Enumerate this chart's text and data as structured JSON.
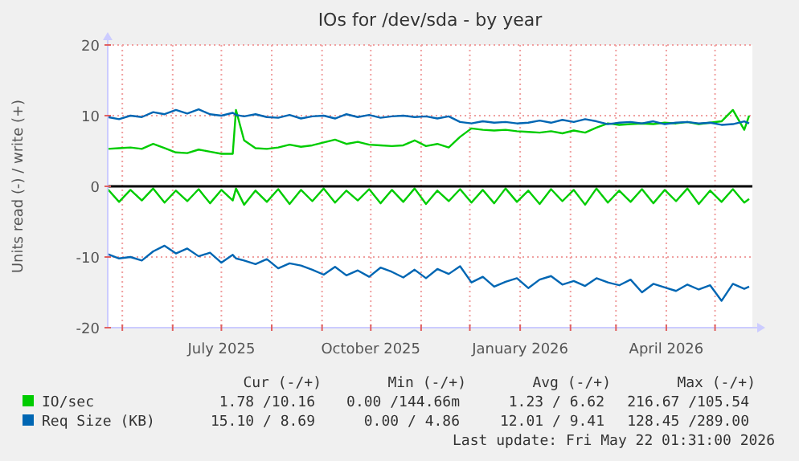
{
  "chart_data": {
    "type": "line",
    "title": "IOs for /dev/sda - by year",
    "ylabel": "Units read (-) / write (+)",
    "x": [
      "2025-04-22",
      "2025-04-29",
      "2025-05-06",
      "2025-05-13",
      "2025-05-20",
      "2025-05-27",
      "2025-06-03",
      "2025-06-10",
      "2025-06-17",
      "2025-06-24",
      "2025-07-01",
      "2025-07-08",
      "2025-07-10",
      "2025-07-15",
      "2025-07-22",
      "2025-07-29",
      "2025-08-05",
      "2025-08-12",
      "2025-08-19",
      "2025-08-26",
      "2025-09-02",
      "2025-09-09",
      "2025-09-16",
      "2025-09-23",
      "2025-09-30",
      "2025-10-07",
      "2025-10-14",
      "2025-10-21",
      "2025-10-28",
      "2025-11-04",
      "2025-11-11",
      "2025-11-18",
      "2025-11-25",
      "2025-12-02",
      "2025-12-09",
      "2025-12-16",
      "2025-12-23",
      "2025-12-30",
      "2026-01-06",
      "2026-01-13",
      "2026-01-20",
      "2026-01-27",
      "2026-02-03",
      "2026-02-10",
      "2026-02-17",
      "2026-02-24",
      "2026-03-03",
      "2026-03-10",
      "2026-03-17",
      "2026-03-24",
      "2026-03-31",
      "2026-04-07",
      "2026-04-14",
      "2026-04-21",
      "2026-04-28",
      "2026-05-05",
      "2026-05-12",
      "2026-05-19",
      "2026-05-22"
    ],
    "series": [
      {
        "name": "IO/sec",
        "color": "#00cc00",
        "values": [
          5.3,
          5.4,
          5.5,
          5.3,
          6.0,
          5.4,
          4.8,
          4.7,
          5.2,
          4.9,
          4.6,
          4.6,
          10.8,
          6.5,
          5.4,
          5.3,
          5.5,
          5.9,
          5.6,
          5.8,
          6.2,
          6.6,
          6.0,
          6.3,
          5.9,
          5.8,
          5.7,
          5.8,
          6.5,
          5.7,
          6.0,
          5.5,
          7.0,
          8.2,
          8.0,
          7.9,
          8.0,
          7.8,
          7.7,
          7.6,
          7.8,
          7.5,
          7.9,
          7.6,
          8.3,
          8.9,
          8.7,
          8.8,
          8.9,
          8.8,
          9.0,
          8.9,
          9.1,
          8.8,
          9.0,
          9.2,
          10.8,
          8.0,
          10.0
        ]
      },
      {
        "color": "#00cc00",
        "values": [
          -0.4,
          -2.2,
          -0.5,
          -2.0,
          -0.3,
          -2.3,
          -0.6,
          -2.1,
          -0.4,
          -2.4,
          -0.5,
          -2.0,
          -0.3,
          -2.6,
          -0.6,
          -2.2,
          -0.4,
          -2.5,
          -0.5,
          -2.1,
          -0.3,
          -2.3,
          -0.6,
          -2.0,
          -0.4,
          -2.4,
          -0.5,
          -2.2,
          -0.3,
          -2.5,
          -0.6,
          -2.1,
          -0.4,
          -2.3,
          -0.5,
          -2.4,
          -0.3,
          -2.2,
          -0.6,
          -2.5,
          -0.4,
          -2.1,
          -0.5,
          -2.6,
          -0.3,
          -2.3,
          -0.6,
          -2.2,
          -0.4,
          -2.4,
          -0.5,
          -2.1,
          -0.3,
          -2.5,
          -0.6,
          -2.2,
          -0.4,
          -2.3,
          -1.8
        ]
      },
      {
        "name": "Req Size (KB)",
        "color": "#0066b3",
        "values": [
          9.8,
          9.5,
          10.0,
          9.8,
          10.5,
          10.2,
          10.8,
          10.3,
          10.9,
          10.2,
          10.0,
          10.4,
          10.1,
          9.9,
          10.2,
          9.8,
          9.7,
          10.1,
          9.6,
          9.9,
          10.0,
          9.6,
          10.2,
          9.8,
          10.1,
          9.7,
          9.9,
          10.0,
          9.8,
          9.9,
          9.6,
          9.9,
          9.1,
          8.9,
          9.2,
          9.0,
          9.1,
          8.9,
          9.0,
          9.3,
          9.0,
          9.4,
          9.1,
          9.5,
          9.2,
          8.8,
          9.0,
          9.1,
          8.9,
          9.2,
          8.8,
          9.0,
          9.1,
          8.9,
          9.0,
          8.7,
          8.8,
          9.2,
          8.9
        ]
      },
      {
        "color": "#0066b3",
        "values": [
          -9.6,
          -10.2,
          -10.0,
          -10.5,
          -9.2,
          -8.4,
          -9.5,
          -8.8,
          -9.9,
          -9.4,
          -10.8,
          -9.7,
          -10.2,
          -10.5,
          -11.0,
          -10.3,
          -11.6,
          -10.9,
          -11.2,
          -11.8,
          -12.5,
          -11.4,
          -12.6,
          -11.9,
          -12.8,
          -11.5,
          -12.1,
          -12.9,
          -11.8,
          -13.0,
          -11.7,
          -12.4,
          -11.3,
          -13.6,
          -12.8,
          -14.2,
          -13.5,
          -13.0,
          -14.4,
          -13.2,
          -12.7,
          -13.9,
          -13.4,
          -14.1,
          -13.0,
          -13.6,
          -14.0,
          -13.2,
          -15.0,
          -13.8,
          -14.3,
          -14.8,
          -13.9,
          -14.6,
          -14.0,
          -16.2,
          -13.8,
          -14.5,
          -14.2
        ]
      }
    ],
    "xlim": [
      "2025-04-22",
      "2026-05-24"
    ],
    "xticks": [
      {
        "value": "2025-05-01",
        "label": null
      },
      {
        "value": "2025-06-01",
        "label": null
      },
      {
        "value": "2025-07-01",
        "label": "July 2025"
      },
      {
        "value": "2025-08-01",
        "label": null
      },
      {
        "value": "2025-09-01",
        "label": null
      },
      {
        "value": "2025-10-01",
        "label": "October 2025"
      },
      {
        "value": "2025-11-01",
        "label": null
      },
      {
        "value": "2025-12-01",
        "label": null
      },
      {
        "value": "2026-01-01",
        "label": "January 2026"
      },
      {
        "value": "2026-02-01",
        "label": null
      },
      {
        "value": "2026-03-01",
        "label": null
      },
      {
        "value": "2026-04-01",
        "label": "April 2026"
      },
      {
        "value": "2026-05-01",
        "label": null
      }
    ],
    "ylim": [
      -20,
      20
    ],
    "yticks": [
      -20,
      -10,
      0,
      10,
      20
    ],
    "ref_lines": [
      {
        "axis": "y",
        "value": 0,
        "color": "#000000"
      }
    ],
    "grid": true,
    "legend": "bottom left",
    "marker": "none",
    "line_style": "solid",
    "annotations": [
      "Cur (-/+)",
      "Min (-/+)",
      "Avg (-/+)",
      "Max (-/+)",
      "1.78 /10.16",
      "0.00 /144.66m",
      "1.23 / 6.62",
      "216.67 /105.54",
      "15.10 / 8.69",
      "0.00 / 4.86",
      "12.01 / 9.41",
      "128.45 /289.00",
      "Last update: Fri May 22 01:31:00 2026"
    ]
  }
}
